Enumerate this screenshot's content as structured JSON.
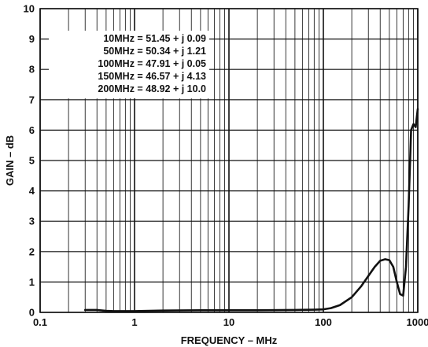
{
  "chart_data": {
    "type": "line",
    "title": "",
    "xlabel": "FREQUENCY – MHz",
    "ylabel": "GAIN – dB",
    "x_scale": "log",
    "xlim": [
      0.1,
      1000
    ],
    "ylim": [
      0,
      10
    ],
    "grid": true,
    "legend": "none",
    "x_ticks": [
      {
        "value": 0.1,
        "label": "0.1"
      },
      {
        "value": 1,
        "label": "1"
      },
      {
        "value": 10,
        "label": "10"
      },
      {
        "value": 100,
        "label": "100"
      },
      {
        "value": 1000,
        "label": "1000"
      }
    ],
    "y_ticks": [
      {
        "value": 0,
        "label": "0"
      },
      {
        "value": 1,
        "label": "1"
      },
      {
        "value": 2,
        "label": "2"
      },
      {
        "value": 3,
        "label": "3"
      },
      {
        "value": 4,
        "label": "4"
      },
      {
        "value": 5,
        "label": "5"
      },
      {
        "value": 6,
        "label": "6"
      },
      {
        "value": 7,
        "label": "7"
      },
      {
        "value": 8,
        "label": "8"
      },
      {
        "value": 9,
        "label": "9"
      },
      {
        "value": 10,
        "label": "10"
      }
    ],
    "annotations": [
      "10MHz = 51.45 + j 0.09",
      "50MHz = 50.34 + j 1.21",
      "100MHz = 47.91 + j 0.05",
      "150MHz = 46.57 + j 4.13",
      "200MHz = 48.92 + j 10.0"
    ],
    "series": [
      {
        "color": "#111111",
        "x": [
          0.3,
          0.4,
          0.5,
          0.6,
          0.8,
          1,
          2,
          5,
          10,
          20,
          50,
          80,
          100,
          120,
          150,
          200,
          250,
          300,
          350,
          400,
          450,
          500,
          550,
          600,
          650,
          700,
          750,
          800,
          850,
          900,
          950,
          1000
        ],
        "y": [
          0.08,
          0.08,
          0.05,
          0.04,
          0.04,
          0.04,
          0.06,
          0.07,
          0.07,
          0.07,
          0.08,
          0.09,
          0.1,
          0.14,
          0.24,
          0.5,
          0.85,
          1.2,
          1.5,
          1.7,
          1.75,
          1.72,
          1.5,
          1.0,
          0.6,
          0.55,
          1.5,
          3.5,
          6.0,
          6.2,
          6.1,
          6.7
        ]
      }
    ]
  }
}
